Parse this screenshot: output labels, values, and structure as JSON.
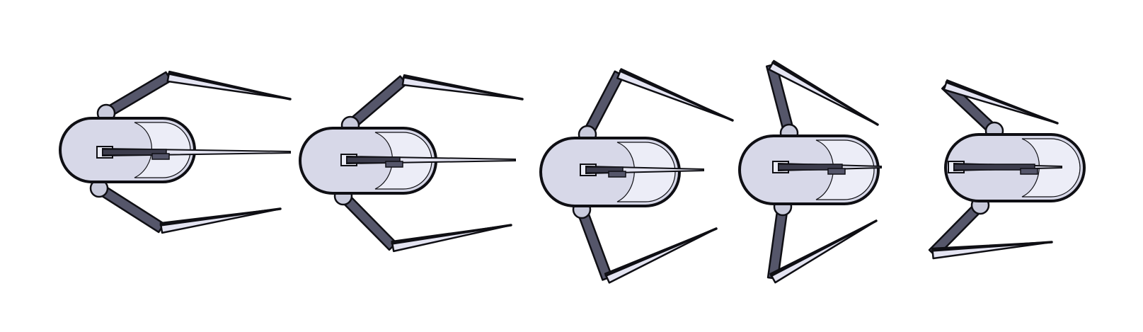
{
  "sprite_sheet": {
    "subject": "robot-creature-sprite",
    "frame_count": 5,
    "colors": {
      "background": "#ffffff",
      "outline": "#0f0f14",
      "body_fill": "#d7d8e8",
      "body_highlight": "#ecedf7",
      "joint_fill": "#c9cbdc",
      "leg_dark": "#55566a",
      "leg_light": "#e4e4f2",
      "arm_dark": "#3c3c4c"
    },
    "frames": [
      {
        "name": "frame-1"
      },
      {
        "name": "frame-2"
      },
      {
        "name": "frame-3"
      },
      {
        "name": "frame-4"
      },
      {
        "name": "frame-5"
      }
    ]
  }
}
